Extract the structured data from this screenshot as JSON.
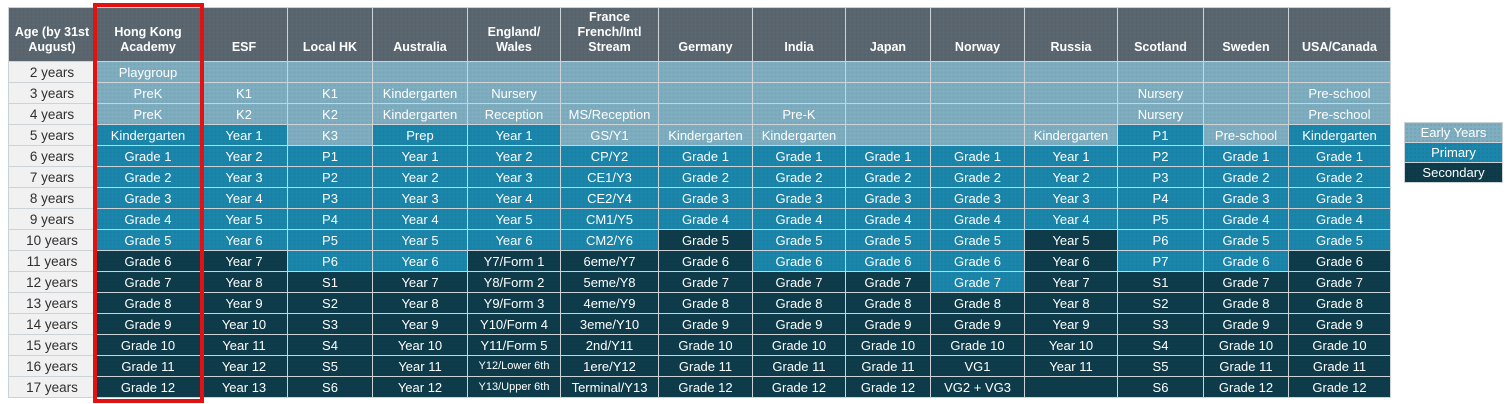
{
  "colors": {
    "early": "#7FAEC1",
    "primary": "#1B86AB",
    "secondary": "#0E3C4B",
    "header_bg": "#5A6670",
    "age_column_bg": "#F1F1F1",
    "age_text": "#2F2F2F",
    "grid_line": "#CCD3D7",
    "highlight_border": "#E31212",
    "cell_text": "#FFFFFF"
  },
  "legend": {
    "items": [
      {
        "label": "Early Years",
        "level": "e"
      },
      {
        "label": "Primary",
        "level": "p"
      },
      {
        "label": "Secondary",
        "level": "s"
      }
    ]
  },
  "chart_data": {
    "type": "table",
    "age_column": {
      "header": "Age (by 31st\nAugust)",
      "width": 87
    },
    "highlighted_column": "hka",
    "level_key": {
      "e": "Early Years",
      "p": "Primary",
      "s": "Secondary"
    },
    "columns": [
      {
        "id": "hka",
        "label": "Hong Kong\nAcademy",
        "width": 105
      },
      {
        "id": "esf",
        "label": "ESF",
        "width": 87
      },
      {
        "id": "local_hk",
        "label": "Local HK",
        "width": 85
      },
      {
        "id": "australia",
        "label": "Australia",
        "width": 95
      },
      {
        "id": "england_wales",
        "label": "England/\nWales",
        "width": 93
      },
      {
        "id": "france",
        "label": "France\nFrench/Intl\nStream",
        "width": 98
      },
      {
        "id": "germany",
        "label": "Germany",
        "width": 94
      },
      {
        "id": "india",
        "label": "India",
        "width": 93
      },
      {
        "id": "japan",
        "label": "Japan",
        "width": 85
      },
      {
        "id": "norway",
        "label": "Norway",
        "width": 94
      },
      {
        "id": "russia",
        "label": "Russia",
        "width": 93
      },
      {
        "id": "scotland",
        "label": "Scotland",
        "width": 86
      },
      {
        "id": "sweden",
        "label": "Sweden",
        "width": 85
      },
      {
        "id": "usa_canada",
        "label": "USA/Canada",
        "width": 102
      }
    ],
    "rows": [
      {
        "age": "2 years",
        "cells": [
          [
            "Playgroup",
            "e"
          ],
          [
            "",
            "e"
          ],
          [
            "",
            "e"
          ],
          [
            "",
            "e"
          ],
          [
            "",
            "e"
          ],
          [
            "",
            "e"
          ],
          [
            "",
            "e"
          ],
          [
            "",
            "e"
          ],
          [
            "",
            "e"
          ],
          [
            "",
            "e"
          ],
          [
            "",
            "e"
          ],
          [
            "",
            "e"
          ],
          [
            "",
            "e"
          ],
          [
            "",
            "e"
          ]
        ]
      },
      {
        "age": "3 years",
        "cells": [
          [
            "PreK",
            "e"
          ],
          [
            "K1",
            "e"
          ],
          [
            "K1",
            "e"
          ],
          [
            "Kindergarten",
            "e"
          ],
          [
            "Nursery",
            "e"
          ],
          [
            "",
            "e"
          ],
          [
            "",
            "e"
          ],
          [
            "",
            "e"
          ],
          [
            "",
            "e"
          ],
          [
            "",
            "e"
          ],
          [
            "",
            "e"
          ],
          [
            "Nursery",
            "e"
          ],
          [
            "",
            "e"
          ],
          [
            "Pre-school",
            "e"
          ]
        ]
      },
      {
        "age": "4 years",
        "cells": [
          [
            "PreK",
            "e"
          ],
          [
            "K2",
            "e"
          ],
          [
            "K2",
            "e"
          ],
          [
            "Kindergarten",
            "e"
          ],
          [
            "Reception",
            "e"
          ],
          [
            "MS/Reception",
            "e"
          ],
          [
            "",
            "e"
          ],
          [
            "Pre-K",
            "e"
          ],
          [
            "",
            "e"
          ],
          [
            "",
            "e"
          ],
          [
            "",
            "e"
          ],
          [
            "Nursery",
            "e"
          ],
          [
            "",
            "e"
          ],
          [
            "Pre-school",
            "e"
          ]
        ]
      },
      {
        "age": "5 years",
        "cells": [
          [
            "Kindergarten",
            "p"
          ],
          [
            "Year 1",
            "p"
          ],
          [
            "K3",
            "e"
          ],
          [
            "Prep",
            "p"
          ],
          [
            "Year 1",
            "p"
          ],
          [
            "GS/Y1",
            "e"
          ],
          [
            "Kindergarten",
            "e"
          ],
          [
            "Kindergarten",
            "e"
          ],
          [
            "",
            "e"
          ],
          [
            "",
            "e"
          ],
          [
            "Kindergarten",
            "e"
          ],
          [
            "P1",
            "p"
          ],
          [
            "Pre-school",
            "e"
          ],
          [
            "Kindergarten",
            "p"
          ]
        ]
      },
      {
        "age": "6 years",
        "cells": [
          [
            "Grade 1",
            "p"
          ],
          [
            "Year 2",
            "p"
          ],
          [
            "P1",
            "p"
          ],
          [
            "Year 1",
            "p"
          ],
          [
            "Year 2",
            "p"
          ],
          [
            "CP/Y2",
            "p"
          ],
          [
            "Grade 1",
            "p"
          ],
          [
            "Grade 1",
            "p"
          ],
          [
            "Grade 1",
            "p"
          ],
          [
            "Grade 1",
            "p"
          ],
          [
            "Year 1",
            "p"
          ],
          [
            "P2",
            "p"
          ],
          [
            "Grade 1",
            "p"
          ],
          [
            "Grade 1",
            "p"
          ]
        ]
      },
      {
        "age": "7 years",
        "cells": [
          [
            "Grade 2",
            "p"
          ],
          [
            "Year 3",
            "p"
          ],
          [
            "P2",
            "p"
          ],
          [
            "Year 2",
            "p"
          ],
          [
            "Year 3",
            "p"
          ],
          [
            "CE1/Y3",
            "p"
          ],
          [
            "Grade 2",
            "p"
          ],
          [
            "Grade 2",
            "p"
          ],
          [
            "Grade 2",
            "p"
          ],
          [
            "Grade 2",
            "p"
          ],
          [
            "Year 2",
            "p"
          ],
          [
            "P3",
            "p"
          ],
          [
            "Grade 2",
            "p"
          ],
          [
            "Grade 2",
            "p"
          ]
        ]
      },
      {
        "age": "8 years",
        "cells": [
          [
            "Grade 3",
            "p"
          ],
          [
            "Year 4",
            "p"
          ],
          [
            "P3",
            "p"
          ],
          [
            "Year 3",
            "p"
          ],
          [
            "Year 4",
            "p"
          ],
          [
            "CE2/Y4",
            "p"
          ],
          [
            "Grade 3",
            "p"
          ],
          [
            "Grade 3",
            "p"
          ],
          [
            "Grade 3",
            "p"
          ],
          [
            "Grade 3",
            "p"
          ],
          [
            "Year 3",
            "p"
          ],
          [
            "P4",
            "p"
          ],
          [
            "Grade 3",
            "p"
          ],
          [
            "Grade 3",
            "p"
          ]
        ]
      },
      {
        "age": "9 years",
        "cells": [
          [
            "Grade 4",
            "p"
          ],
          [
            "Year 5",
            "p"
          ],
          [
            "P4",
            "p"
          ],
          [
            "Year 4",
            "p"
          ],
          [
            "Year 5",
            "p"
          ],
          [
            "CM1/Y5",
            "p"
          ],
          [
            "Grade 4",
            "p"
          ],
          [
            "Grade 4",
            "p"
          ],
          [
            "Grade 4",
            "p"
          ],
          [
            "Grade 4",
            "p"
          ],
          [
            "Year 4",
            "p"
          ],
          [
            "P5",
            "p"
          ],
          [
            "Grade 4",
            "p"
          ],
          [
            "Grade 4",
            "p"
          ]
        ]
      },
      {
        "age": "10 years",
        "cells": [
          [
            "Grade 5",
            "p"
          ],
          [
            "Year 6",
            "p"
          ],
          [
            "P5",
            "p"
          ],
          [
            "Year 5",
            "p"
          ],
          [
            "Year 6",
            "p"
          ],
          [
            "CM2/Y6",
            "p"
          ],
          [
            "Grade 5",
            "s"
          ],
          [
            "Grade 5",
            "p"
          ],
          [
            "Grade 5",
            "p"
          ],
          [
            "Grade 5",
            "p"
          ],
          [
            "Year 5",
            "s"
          ],
          [
            "P6",
            "p"
          ],
          [
            "Grade 5",
            "p"
          ],
          [
            "Grade 5",
            "p"
          ]
        ]
      },
      {
        "age": "11 years",
        "cells": [
          [
            "Grade 6",
            "s"
          ],
          [
            "Year 7",
            "s"
          ],
          [
            "P6",
            "p"
          ],
          [
            "Year 6",
            "p"
          ],
          [
            "Y7/Form 1",
            "s"
          ],
          [
            "6eme/Y7",
            "s"
          ],
          [
            "Grade 6",
            "s"
          ],
          [
            "Grade 6",
            "p"
          ],
          [
            "Grade 6",
            "p"
          ],
          [
            "Grade 6",
            "p"
          ],
          [
            "Year 6",
            "s"
          ],
          [
            "P7",
            "p"
          ],
          [
            "Grade 6",
            "p"
          ],
          [
            "Grade 6",
            "s"
          ]
        ]
      },
      {
        "age": "12 years",
        "cells": [
          [
            "Grade 7",
            "s"
          ],
          [
            "Year 8",
            "s"
          ],
          [
            "S1",
            "s"
          ],
          [
            "Year 7",
            "s"
          ],
          [
            "Y8/Form 2",
            "s"
          ],
          [
            "5eme/Y8",
            "s"
          ],
          [
            "Grade 7",
            "s"
          ],
          [
            "Grade 7",
            "s"
          ],
          [
            "Grade 7",
            "s"
          ],
          [
            "Grade 7",
            "p"
          ],
          [
            "Year 7",
            "s"
          ],
          [
            "S1",
            "s"
          ],
          [
            "Grade 7",
            "s"
          ],
          [
            "Grade 7",
            "s"
          ]
        ]
      },
      {
        "age": "13 years",
        "cells": [
          [
            "Grade 8",
            "s"
          ],
          [
            "Year 9",
            "s"
          ],
          [
            "S2",
            "s"
          ],
          [
            "Year 8",
            "s"
          ],
          [
            "Y9/Form 3",
            "s"
          ],
          [
            "4eme/Y9",
            "s"
          ],
          [
            "Grade 8",
            "s"
          ],
          [
            "Grade 8",
            "s"
          ],
          [
            "Grade 8",
            "s"
          ],
          [
            "Grade 8",
            "s"
          ],
          [
            "Year 8",
            "s"
          ],
          [
            "S2",
            "s"
          ],
          [
            "Grade 8",
            "s"
          ],
          [
            "Grade 8",
            "s"
          ]
        ]
      },
      {
        "age": "14 years",
        "cells": [
          [
            "Grade 9",
            "s"
          ],
          [
            "Year 10",
            "s"
          ],
          [
            "S3",
            "s"
          ],
          [
            "Year 9",
            "s"
          ],
          [
            "Y10/Form 4",
            "s"
          ],
          [
            "3eme/Y10",
            "s"
          ],
          [
            "Grade 9",
            "s"
          ],
          [
            "Grade 9",
            "s"
          ],
          [
            "Grade 9",
            "s"
          ],
          [
            "Grade 9",
            "s"
          ],
          [
            "Year 9",
            "s"
          ],
          [
            "S3",
            "s"
          ],
          [
            "Grade 9",
            "s"
          ],
          [
            "Grade 9",
            "s"
          ]
        ]
      },
      {
        "age": "15 years",
        "cells": [
          [
            "Grade 10",
            "s"
          ],
          [
            "Year 11",
            "s"
          ],
          [
            "S4",
            "s"
          ],
          [
            "Year 10",
            "s"
          ],
          [
            "Y11/Form 5",
            "s"
          ],
          [
            "2nd/Y11",
            "s"
          ],
          [
            "Grade 10",
            "s"
          ],
          [
            "Grade 10",
            "s"
          ],
          [
            "Grade 10",
            "s"
          ],
          [
            "Grade 10",
            "s"
          ],
          [
            "Year 10",
            "s"
          ],
          [
            "S4",
            "s"
          ],
          [
            "Grade 10",
            "s"
          ],
          [
            "Grade 10",
            "s"
          ]
        ]
      },
      {
        "age": "16 years",
        "cells": [
          [
            "Grade 11",
            "s"
          ],
          [
            "Year 12",
            "s"
          ],
          [
            "S5",
            "s"
          ],
          [
            "Year 11",
            "s"
          ],
          [
            "Y12/Lower 6th",
            "s"
          ],
          [
            "1ere/Y12",
            "s"
          ],
          [
            "Grade 11",
            "s"
          ],
          [
            "Grade 11",
            "s"
          ],
          [
            "Grade 11",
            "s"
          ],
          [
            "VG1",
            "s"
          ],
          [
            "Year 11",
            "s"
          ],
          [
            "S5",
            "s"
          ],
          [
            "Grade 11",
            "s"
          ],
          [
            "Grade 11",
            "s"
          ]
        ]
      },
      {
        "age": "17 years",
        "cells": [
          [
            "Grade 12",
            "s"
          ],
          [
            "Year 13",
            "s"
          ],
          [
            "S6",
            "s"
          ],
          [
            "Year 12",
            "s"
          ],
          [
            "Y13/Upper 6th",
            "s"
          ],
          [
            "Terminal/Y13",
            "s"
          ],
          [
            "Grade 12",
            "s"
          ],
          [
            "Grade 12",
            "s"
          ],
          [
            "Grade 12",
            "s"
          ],
          [
            "VG2 + VG3",
            "s"
          ],
          [
            "",
            "s"
          ],
          [
            "S6",
            "s"
          ],
          [
            "Grade 12",
            "s"
          ],
          [
            "Grade 12",
            "s"
          ]
        ]
      }
    ]
  }
}
